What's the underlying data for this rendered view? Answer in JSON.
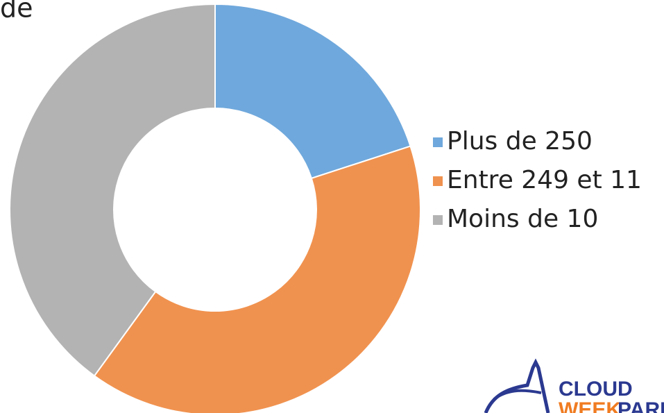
{
  "chart_data": {
    "type": "donut",
    "title": "de",
    "categories": [
      "Plus de 250",
      "Entre 249 et 11",
      "Moins de 10"
    ],
    "values": [
      20,
      40,
      40
    ],
    "colors": [
      "#6fa8dc",
      "#f0924f",
      "#b3b3b3"
    ],
    "legend": "right"
  },
  "logo": {
    "top": "CLOUD",
    "bottom_left": "WEEK",
    "bottom_right": "PARIS"
  }
}
